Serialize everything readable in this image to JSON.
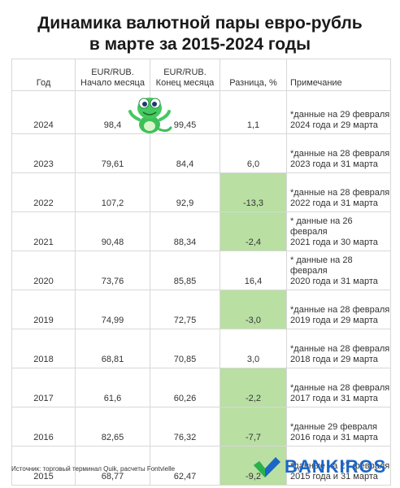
{
  "title": {
    "line1": "Динамика валютной пары евро-рубль",
    "line2": "в марте за 2015-2024 годы"
  },
  "table": {
    "headers": {
      "year": "Год",
      "start_l1": "EUR/RUB.",
      "start_l2": "Начало месяца",
      "end_l1": "EUR/RUB.",
      "end_l2": "Конец месяца",
      "diff": "Разница, %",
      "note": "Примечание"
    },
    "rows": [
      {
        "year": "2024",
        "start": "98,4",
        "end": "99,45",
        "diff": "1,1",
        "negative": false,
        "note1": "*данные на 29 февраля",
        "note2": "2024 года и 29 марта"
      },
      {
        "year": "2023",
        "start": "79,61",
        "end": "84,4",
        "diff": "6,0",
        "negative": false,
        "note1": "*данные на 28 февраля",
        "note2": "2023 года и 31 марта"
      },
      {
        "year": "2022",
        "start": "107,2",
        "end": "92,9",
        "diff": "-13,3",
        "negative": true,
        "note1": "*данные на 28 февраля",
        "note2": "2022 года и 31 марта"
      },
      {
        "year": "2021",
        "start": "90,48",
        "end": "88,34",
        "diff": "-2,4",
        "negative": true,
        "note1": "* данные на 26 февраля",
        "note2": "2021 года  и 30 марта"
      },
      {
        "year": "2020",
        "start": "73,76",
        "end": "85,85",
        "diff": "16,4",
        "negative": false,
        "note1": "* данные на 28 февраля",
        "note2": "2020 года и 31 марта"
      },
      {
        "year": "2019",
        "start": "74,99",
        "end": "72,75",
        "diff": "-3,0",
        "negative": true,
        "note1": "*данные на 28 февраля",
        "note2": "2019 года и 29 марта"
      },
      {
        "year": "2018",
        "start": "68,81",
        "end": "70,85",
        "diff": "3,0",
        "negative": false,
        "note1": "*данные на 28 февраля",
        "note2": "2018 года и 29 марта"
      },
      {
        "year": "2017",
        "start": "61,6",
        "end": "60,26",
        "diff": "-2,2",
        "negative": true,
        "note1": "*данные на  28 февраля",
        "note2": "2017 года и 31 марта"
      },
      {
        "year": "2016",
        "start": "82,65",
        "end": "76,32",
        "diff": "-7,7",
        "negative": true,
        "note1": "*данные 29 февраля",
        "note2": "2016 года и 31 марта"
      },
      {
        "year": "2015",
        "start": "68,77",
        "end": "62,47",
        "diff": "-9,2",
        "negative": true,
        "note1": "*данные на  27 февраля",
        "note2": "2015 года и 31 марта"
      }
    ]
  },
  "footer": {
    "source": "Источник: торговый терминал Quik, расчеты Fontvielle"
  },
  "logo": {
    "text": "BANKIROS",
    "icon": "bankiros-check-icon",
    "color": "#1b66c6"
  },
  "mascot": {
    "icon": "lizard-mascot-icon"
  },
  "colors": {
    "negative_fill": "#b9dfa3"
  }
}
